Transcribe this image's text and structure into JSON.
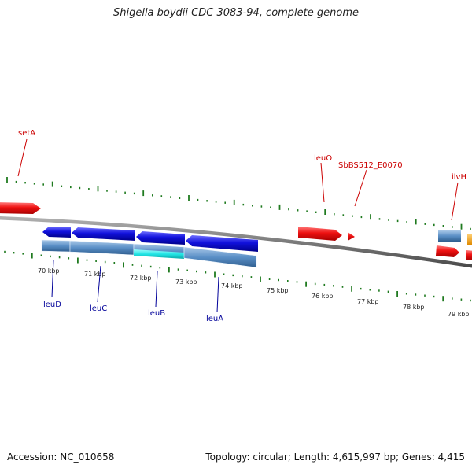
{
  "title": "Shigella boydii CDC 3083-94, complete genome",
  "footer": {
    "accession": "Accession: NC_010658",
    "summary": "Topology: circular; Length: 4,615,997 bp; Genes: 4,415"
  },
  "colors": {
    "forward_gene": "#ee1111",
    "reverse_gene": "#1111dd",
    "cds_steel": "#5a8fc6",
    "cds_highlight": "#22e5e5",
    "backbone": "#808080",
    "tick": "#1f7a1f",
    "forward_label": "#cc0000",
    "reverse_label": "#000099"
  },
  "scale": {
    "unit": "kbp",
    "labels": [
      "70 kbp",
      "71 kbp",
      "72 kbp",
      "73 kbp",
      "74 kbp",
      "75 kbp",
      "76 kbp",
      "77 kbp",
      "78 kbp",
      "79 kbp"
    ]
  },
  "genes_forward": [
    {
      "name": "setA"
    },
    {
      "name": "leuO"
    },
    {
      "name": "SbBS512_E0070"
    },
    {
      "name": "ilvH"
    }
  ],
  "genes_reverse": [
    {
      "name": "leuD"
    },
    {
      "name": "leuC"
    },
    {
      "name": "leuB"
    },
    {
      "name": "leuA"
    }
  ]
}
